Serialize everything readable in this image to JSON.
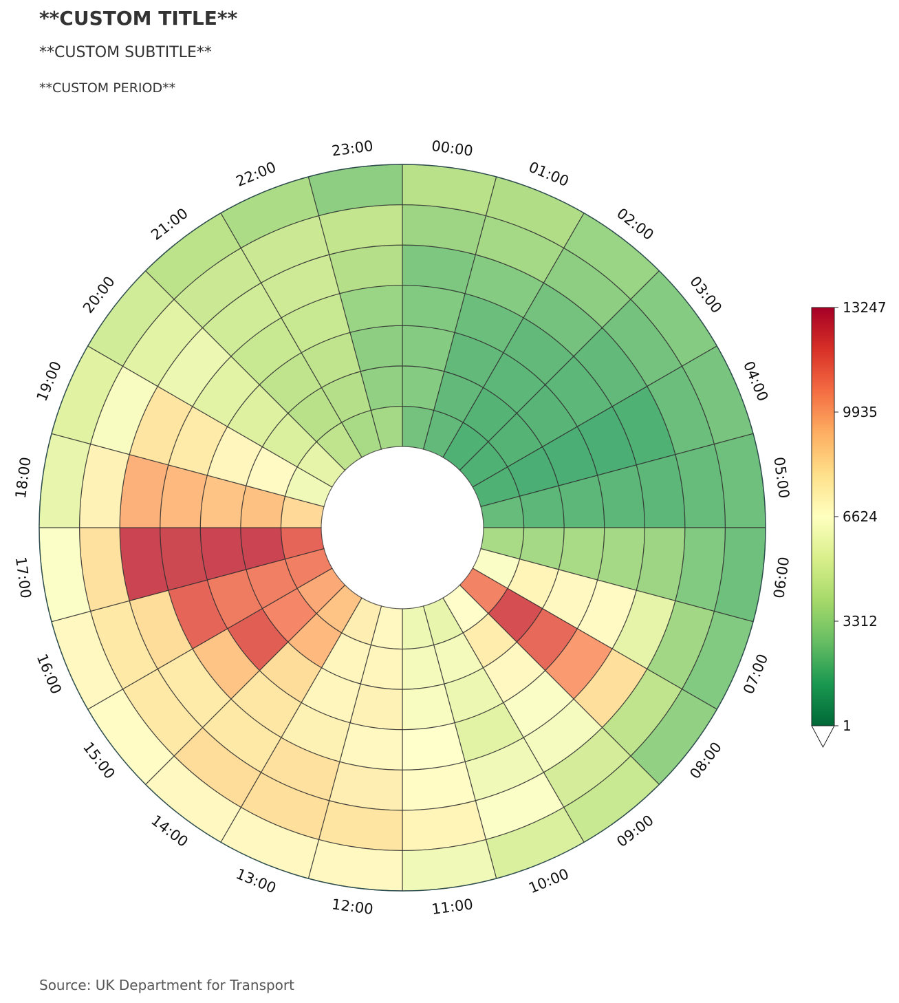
{
  "header": {
    "title": "**CUSTOM TITLE**",
    "subtitle": "**CUSTOM SUBTITLE**",
    "period": "**CUSTOM PERIOD**"
  },
  "footer": {
    "source": "Source: UK Department for Transport"
  },
  "chart_data": {
    "type": "heatmap",
    "layout": "radial",
    "angular_categories": [
      "00:00",
      "01:00",
      "02:00",
      "03:00",
      "04:00",
      "05:00",
      "06:00",
      "07:00",
      "08:00",
      "09:00",
      "10:00",
      "11:00",
      "12:00",
      "13:00",
      "14:00",
      "15:00",
      "16:00",
      "17:00",
      "18:00",
      "19:00",
      "20:00",
      "21:00",
      "22:00",
      "23:00"
    ],
    "ring_count": 7,
    "ring_order": "inner-to-outer",
    "values": [
      [
        2300,
        2700,
        2700,
        2600,
        2500,
        3300,
        4000
      ],
      [
        1900,
        1900,
        1900,
        2100,
        2700,
        3500,
        3800
      ],
      [
        1500,
        1600,
        1800,
        1900,
        2300,
        2900,
        3200
      ],
      [
        1500,
        1600,
        1700,
        1800,
        1900,
        2300,
        2700
      ],
      [
        1500,
        1400,
        1400,
        1400,
        1500,
        2100,
        2400
      ],
      [
        2000,
        1800,
        1800,
        1800,
        1800,
        2000,
        2200
      ],
      [
        3600,
        3500,
        3600,
        3500,
        3300,
        2600,
        2200
      ],
      [
        6400,
        7200,
        7000,
        6900,
        5500,
        3400,
        2600
      ],
      [
        10800,
        12300,
        11500,
        10200,
        8200,
        4200,
        3000
      ],
      [
        6700,
        7600,
        7000,
        6400,
        6200,
        4900,
        4500
      ],
      [
        5600,
        6100,
        5800,
        5400,
        6000,
        6500,
        5100
      ],
      [
        5900,
        6100,
        6300,
        6600,
        6800,
        7200,
        6000
      ],
      [
        7000,
        7100,
        7300,
        7000,
        7500,
        8000,
        7000
      ],
      [
        7500,
        7100,
        7100,
        7400,
        8100,
        8200,
        7000
      ],
      [
        9100,
        9400,
        8300,
        7900,
        7800,
        8300,
        7000
      ],
      [
        9800,
        10700,
        11800,
        9100,
        7700,
        7800,
        6800
      ],
      [
        10900,
        10900,
        11000,
        11600,
        8300,
        7800,
        7000
      ],
      [
        11600,
        12600,
        12600,
        12500,
        12600,
        8100,
        6500
      ],
      [
        8400,
        9200,
        9100,
        9400,
        9600,
        7300,
        5600
      ],
      [
        6000,
        6900,
        7100,
        7700,
        8000,
        6300,
        5300
      ],
      [
        5500,
        5100,
        5200,
        5400,
        5800,
        5400,
        4800
      ],
      [
        4200,
        4000,
        4200,
        4500,
        4800,
        4600,
        4100
      ],
      [
        3600,
        3900,
        4200,
        4500,
        4700,
        4600,
        3700
      ],
      [
        3500,
        3000,
        2900,
        3200,
        3900,
        4300,
        2900
      ]
    ],
    "colorbar": {
      "colormap": "RdYlGn_r",
      "min": 1,
      "max": 13247,
      "ticks": [
        "1",
        "3312",
        "6624",
        "9935",
        "13247"
      ],
      "extend": "min"
    }
  }
}
